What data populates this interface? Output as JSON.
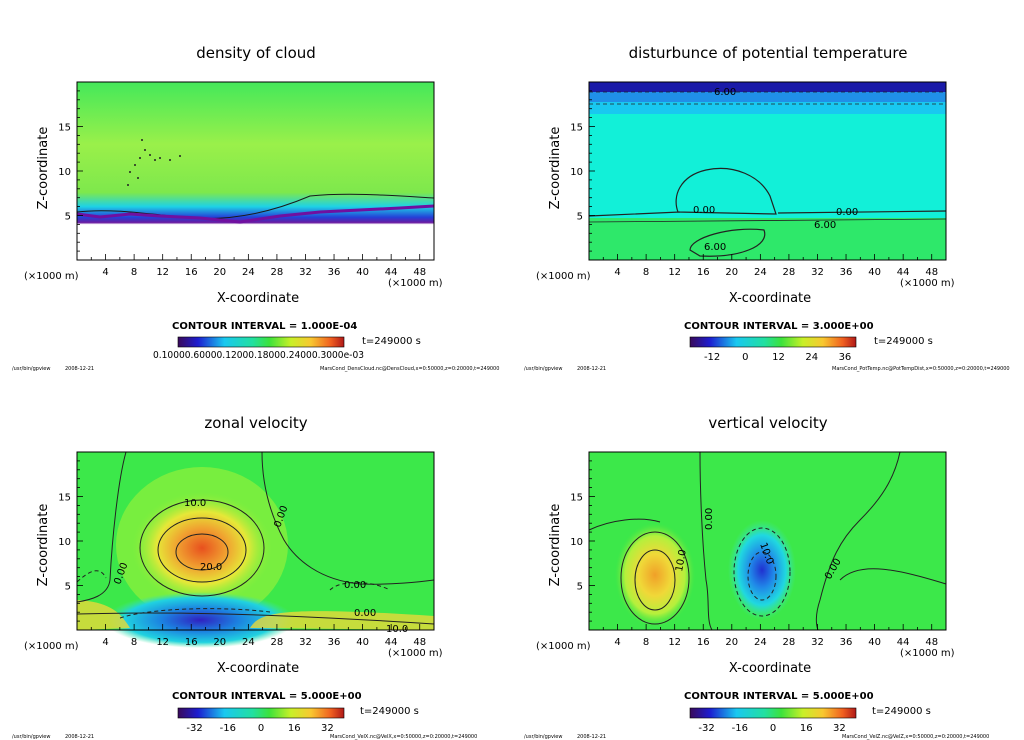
{
  "footer_program": "/usr/bin/gpview",
  "footer_date": "2008-12-21",
  "chart_data": [
    {
      "type": "heatmap",
      "title": "density of cloud",
      "xlabel": "X-coordinate",
      "ylabel": "Z-coordinate",
      "x_unit": "(×1000 m)",
      "xlim": [
        0,
        50
      ],
      "ylim": [
        0,
        20
      ],
      "x_ticks": [
        "4",
        "8",
        "12",
        "16",
        "20",
        "24",
        "28",
        "32",
        "36",
        "40",
        "44",
        "48"
      ],
      "y_ticks": [
        "5",
        "10",
        "15"
      ],
      "contour_interval": "CONTOUR INTERVAL = 1.000E-04",
      "time": "t=249000 s",
      "colorbar_labels": [
        "0.10000.60000.12000.18000.24000.3000e-03"
      ],
      "source": "MarsCond_DensCloud.nc@DensCloud,x=0:50000,z=0:20000,t=249000"
    },
    {
      "type": "heatmap",
      "title": "disturbunce of potential temperature",
      "xlabel": "X-coordinate",
      "ylabel": "Z-coordinate",
      "x_unit": "(×1000 m)",
      "xlim": [
        0,
        50
      ],
      "ylim": [
        0,
        20
      ],
      "x_ticks": [
        "4",
        "8",
        "12",
        "16",
        "20",
        "24",
        "28",
        "32",
        "36",
        "40",
        "44",
        "48"
      ],
      "y_ticks": [
        "5",
        "10",
        "15"
      ],
      "contour_interval": "CONTOUR INTERVAL = 3.000E+00",
      "time": "t=249000 s",
      "colorbar_labels": [
        "-12",
        "0",
        "12",
        "24",
        "36"
      ],
      "contour_labels": [
        "6.00",
        "0.00",
        "0.00",
        "6.00",
        "6.00"
      ],
      "source": "MarsCond_PotTemp.nc@PotTempDist,x=0:50000,z=0:20000,t=249000"
    },
    {
      "type": "heatmap",
      "title": "zonal velocity",
      "xlabel": "X-coordinate",
      "ylabel": "Z-coordinate",
      "x_unit": "(×1000 m)",
      "xlim": [
        0,
        50
      ],
      "ylim": [
        0,
        20
      ],
      "x_ticks": [
        "4",
        "8",
        "12",
        "16",
        "20",
        "24",
        "28",
        "32",
        "36",
        "40",
        "44",
        "48"
      ],
      "y_ticks": [
        "5",
        "10",
        "15"
      ],
      "contour_interval": "CONTOUR INTERVAL = 5.000E+00",
      "time": "t=249000 s",
      "colorbar_labels": [
        "-32",
        "-16",
        "0",
        "16",
        "32"
      ],
      "contour_labels": [
        "10.0",
        "20.0",
        "0.00",
        "0.00",
        "0.00",
        "0.00",
        "10.0"
      ],
      "source": "MarsCond_VelX.nc@VelX,x=0:50000,z=0:20000,t=249000"
    },
    {
      "type": "heatmap",
      "title": "vertical velocity",
      "xlabel": "X-coordinate",
      "ylabel": "Z-coordinate",
      "x_unit": "(×1000 m)",
      "xlim": [
        0,
        50
      ],
      "ylim": [
        0,
        20
      ],
      "x_ticks": [
        "4",
        "8",
        "12",
        "16",
        "20",
        "24",
        "28",
        "32",
        "36",
        "40",
        "44",
        "48"
      ],
      "y_ticks": [
        "5",
        "10",
        "15"
      ],
      "contour_interval": "CONTOUR INTERVAL = 5.000E+00",
      "time": "t=249000 s",
      "colorbar_labels": [
        "-32",
        "-16",
        "0",
        "16",
        "32"
      ],
      "contour_labels": [
        "0.00",
        "10.0",
        "10.0",
        "0.00"
      ],
      "source": "MarsCond_VelZ.nc@VelZ,x=0:50000,z=0:20000,t=249000"
    }
  ]
}
